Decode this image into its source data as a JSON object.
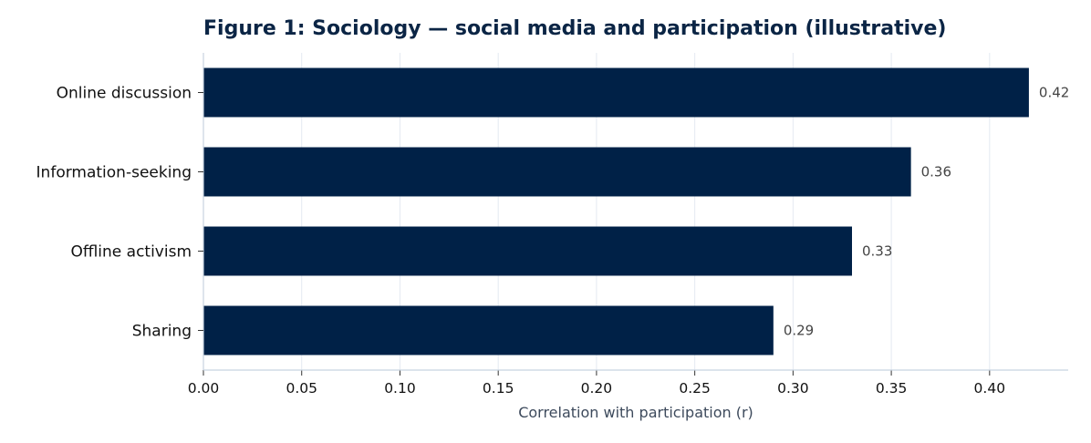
{
  "chart_data": {
    "type": "bar",
    "orientation": "horizontal",
    "title": "Figure 1: Sociology — social media and participation (illustrative)",
    "xlabel": "Correlation with participation (r)",
    "ylabel": "",
    "categories": [
      "Online discussion",
      "Information-seeking",
      "Offline activism",
      "Sharing"
    ],
    "values": [
      0.42,
      0.36,
      0.33,
      0.29
    ],
    "value_labels": [
      "0.42",
      "0.36",
      "0.33",
      "0.29"
    ],
    "xlim": [
      0.0,
      0.44
    ],
    "xticks": [
      0.0,
      0.05,
      0.1,
      0.15,
      0.2,
      0.25,
      0.3,
      0.35,
      0.4
    ],
    "xtick_labels": [
      "0.00",
      "0.05",
      "0.10",
      "0.15",
      "0.20",
      "0.25",
      "0.30",
      "0.35",
      "0.40"
    ],
    "grid": "vertical",
    "bar_color": "#002147",
    "grid_color": "#e4e9f1",
    "axis_color": "#c8d3e0"
  }
}
